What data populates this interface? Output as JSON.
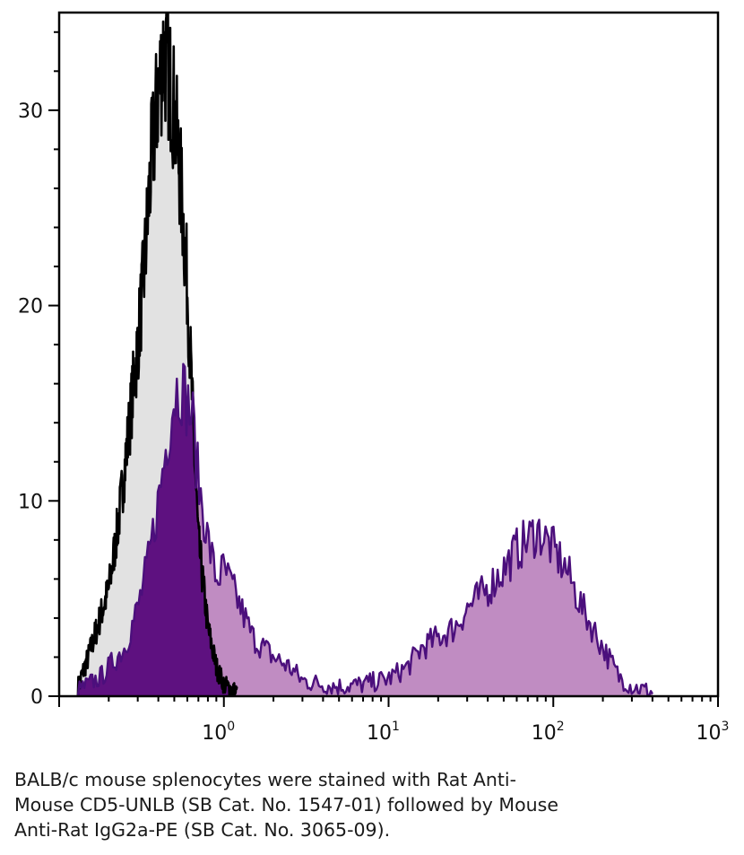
{
  "chart_data": {
    "type": "area",
    "xscale": "log",
    "xlim": [
      0.1,
      1000
    ],
    "ylim": [
      0,
      35
    ],
    "xticks": [
      {
        "value": 1,
        "base": "10",
        "exp": "0"
      },
      {
        "value": 10,
        "base": "10",
        "exp": "1"
      },
      {
        "value": 100,
        "base": "10",
        "exp": "2"
      },
      {
        "value": 1000,
        "base": "10",
        "exp": "3"
      }
    ],
    "yticks": [
      {
        "value": 0,
        "label": "0"
      },
      {
        "value": 10,
        "label": "10"
      },
      {
        "value": 20,
        "label": "20"
      },
      {
        "value": 30,
        "label": "30"
      }
    ],
    "colors": {
      "control_fill": "#e2e2e2",
      "control_line": "#000000",
      "stained_fill": "#c08cc2",
      "stained_line": "#4b0f7c",
      "stained_peak_fill": "#5e1180"
    },
    "series": [
      {
        "role": "control",
        "x": [
          0.13,
          0.15,
          0.17,
          0.2,
          0.23,
          0.26,
          0.3,
          0.33,
          0.36,
          0.4,
          0.43,
          0.46,
          0.5,
          0.55,
          0.6,
          0.65,
          0.7,
          0.8,
          0.9,
          1.0,
          1.2
        ],
        "y": [
          0.5,
          2,
          3.5,
          5.5,
          9,
          13,
          18,
          22,
          27,
          31,
          33,
          32,
          30,
          26,
          21,
          14,
          8,
          3.5,
          1.5,
          0.6,
          0.2
        ]
      },
      {
        "role": "stained",
        "x": [
          0.13,
          0.18,
          0.25,
          0.3,
          0.35,
          0.4,
          0.45,
          0.5,
          0.55,
          0.6,
          0.65,
          0.7,
          0.8,
          0.9,
          1.0,
          1.2,
          1.5,
          2,
          2.5,
          3,
          4,
          5,
          7,
          10,
          13,
          16,
          20,
          25,
          30,
          40,
          50,
          60,
          70,
          80,
          90,
          100,
          120,
          150,
          200,
          250,
          300,
          400
        ],
        "y": [
          0.3,
          1,
          2.5,
          4.5,
          7,
          10,
          13,
          15.5,
          16,
          15,
          14,
          11,
          8,
          6,
          6.5,
          5,
          3,
          2,
          1.5,
          0.8,
          0.6,
          0.5,
          0.6,
          0.9,
          1.5,
          2.5,
          3,
          3.5,
          4.5,
          5.5,
          6.5,
          7.5,
          8,
          8.5,
          8,
          7.5,
          6.5,
          4.5,
          2.5,
          1,
          0.5,
          0.2
        ]
      }
    ]
  },
  "caption": {
    "lines": [
      "BALB/c mouse splenocytes were stained with Rat Anti-",
      "Mouse CD5-UNLB (SB Cat. No. 1547-01) followed by Mouse",
      "Anti-Rat IgG2a-PE (SB Cat. No. 3065-09)."
    ]
  }
}
